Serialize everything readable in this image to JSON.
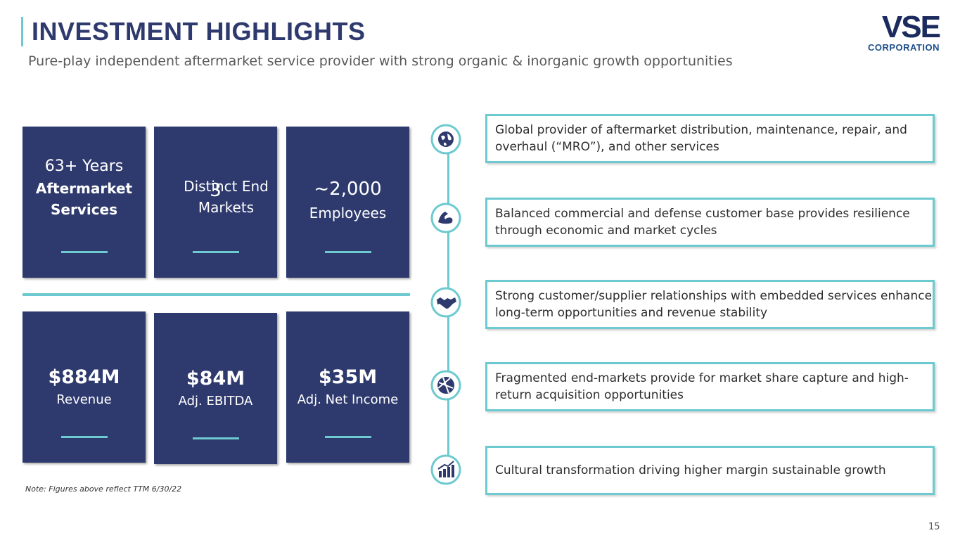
{
  "header": {
    "title": "INVESTMENT HIGHLIGHTS",
    "subtitle": "Pure-play independent aftermarket service provider with strong organic & inorganic growth opportunities",
    "logo": {
      "mark": "VSE",
      "text": "CORPORATION"
    }
  },
  "stats": [
    {
      "main": "63+ Years",
      "detail": "Aftermarket Services"
    },
    {
      "main": "3",
      "detail": "Distinct End Markets"
    },
    {
      "main": "~2,000",
      "detail": "Employees"
    },
    {
      "main": "$884M",
      "detail": "Revenue"
    },
    {
      "main": "$84M",
      "detail": "Adj. EBITDA"
    },
    {
      "main": "$35M",
      "detail": "Adj. Net Income"
    }
  ],
  "note": "Note: Figures above reflect TTM 6/30/22",
  "highlights": [
    "Global provider of aftermarket distribution, maintenance, repair, and overhaul (“MRO”), and other services",
    "Balanced commercial and defense customer base provides resilience through economic and market cycles",
    "Strong customer/supplier relationships with embedded services enhance long-term opportunities and revenue stability",
    "Fragmented end-markets provide for market share capture and high-return acquisition opportunities",
    "Cultural transformation driving higher margin sustainable growth"
  ],
  "page_number": "15"
}
